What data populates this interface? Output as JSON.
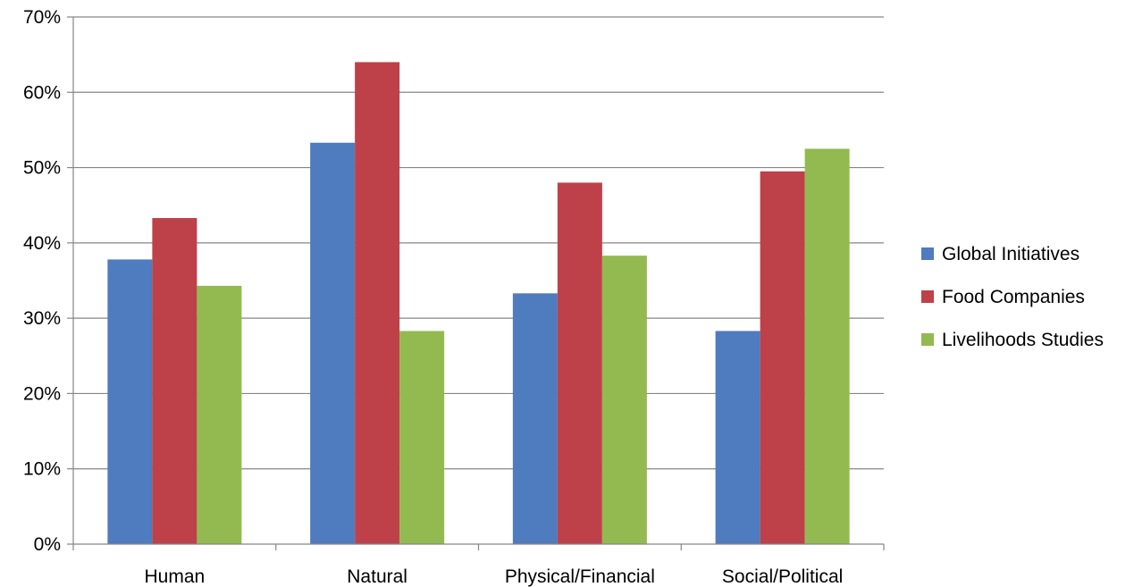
{
  "chart_data": {
    "type": "bar",
    "title": "",
    "xlabel": "",
    "ylabel": "",
    "categories": [
      "Human",
      "Natural",
      "Physical/Financial",
      "Social/Political"
    ],
    "series": [
      {
        "name": "Global Initiatives",
        "values": [
          0.378,
          0.533,
          0.333,
          0.283
        ],
        "color": "#4F7BBF"
      },
      {
        "name": "Food Companies",
        "values": [
          0.433,
          0.64,
          0.48,
          0.495
        ],
        "color": "#BE4149"
      },
      {
        "name": "Livelihoods Studies",
        "values": [
          0.343,
          0.283,
          0.383,
          0.525
        ],
        "color": "#93BA50"
      }
    ],
    "ylim": [
      0,
      0.7
    ],
    "yticks": [
      0,
      0.1,
      0.2,
      0.3,
      0.4,
      0.5,
      0.6,
      0.7
    ],
    "ytick_labels": [
      "0%",
      "10%",
      "20%",
      "30%",
      "40%",
      "50%",
      "60%",
      "70%"
    ],
    "grid": true,
    "gridline_color": "#868686",
    "legend_position": "right"
  }
}
